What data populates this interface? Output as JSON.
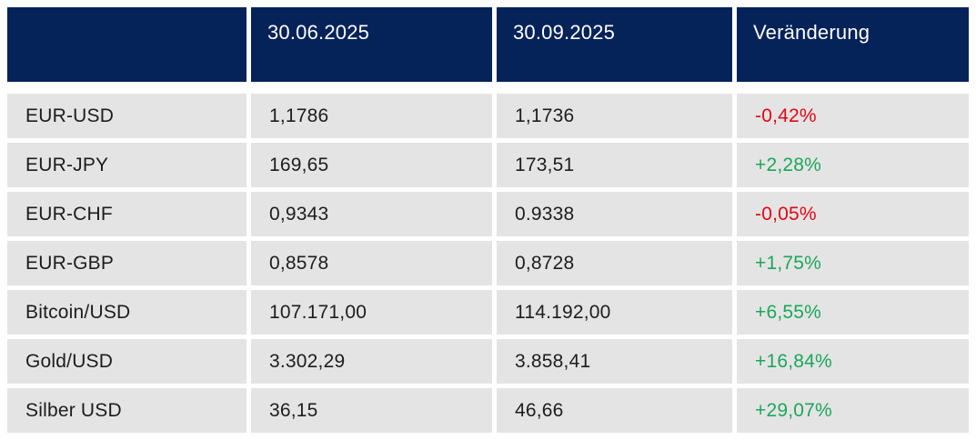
{
  "table": {
    "header": {
      "instrument_label": "",
      "date1": "30.06.2025",
      "date2": "30.09.2025",
      "change_label": "Veränderung"
    },
    "rows": [
      {
        "label": "EUR-USD",
        "v1": "1,1786",
        "v2": "1,1736",
        "change": "-0,42%",
        "direction": "down"
      },
      {
        "label": "EUR-JPY",
        "v1": "169,65",
        "v2": "173,51",
        "change": "+2,28%",
        "direction": "up"
      },
      {
        "label": "EUR-CHF",
        "v1": "0,9343",
        "v2": "0.9338",
        "change": "-0,05%",
        "direction": "down"
      },
      {
        "label": "EUR-GBP",
        "v1": "0,8578",
        "v2": "0,8728",
        "change": "+1,75%",
        "direction": "up"
      },
      {
        "label": "Bitcoin/USD",
        "v1": "107.171,00",
        "v2": "114.192,00",
        "change": "+6,55%",
        "direction": "up"
      },
      {
        "label": "Gold/USD",
        "v1": "3.302,29",
        "v2": "3.858,41",
        "change": "+16,84%",
        "direction": "up"
      },
      {
        "label": "Silber USD",
        "v1": "36,15",
        "v2": "46,66",
        "change": "+29,07%",
        "direction": "up"
      }
    ],
    "colors": {
      "header_bg": "#052259",
      "header_fg": "#ffffff",
      "row_bg": "#e4e4e4",
      "text": "#1d1d1d",
      "negative": "#e30613",
      "positive": "#1aa75a"
    }
  },
  "chart_data": {
    "type": "table",
    "title": "",
    "columns": [
      "",
      "30.06.2025",
      "30.09.2025",
      "Veränderung"
    ],
    "rows": [
      [
        "EUR-USD",
        "1,1786",
        "1,1736",
        "-0,42%"
      ],
      [
        "EUR-JPY",
        "169,65",
        "173,51",
        "+2,28%"
      ],
      [
        "EUR-CHF",
        "0,9343",
        "0.9338",
        "-0,05%"
      ],
      [
        "EUR-GBP",
        "0,8578",
        "0,8728",
        "+1,75%"
      ],
      [
        "Bitcoin/USD",
        "107.171,00",
        "114.192,00",
        "+6,55%"
      ],
      [
        "Gold/USD",
        "3.302,29",
        "3.858,41",
        "+16,84%"
      ],
      [
        "Silber USD",
        "36,15",
        "46,66",
        "+29,07%"
      ]
    ],
    "notes": "Change column colored red for negative, green for positive"
  }
}
